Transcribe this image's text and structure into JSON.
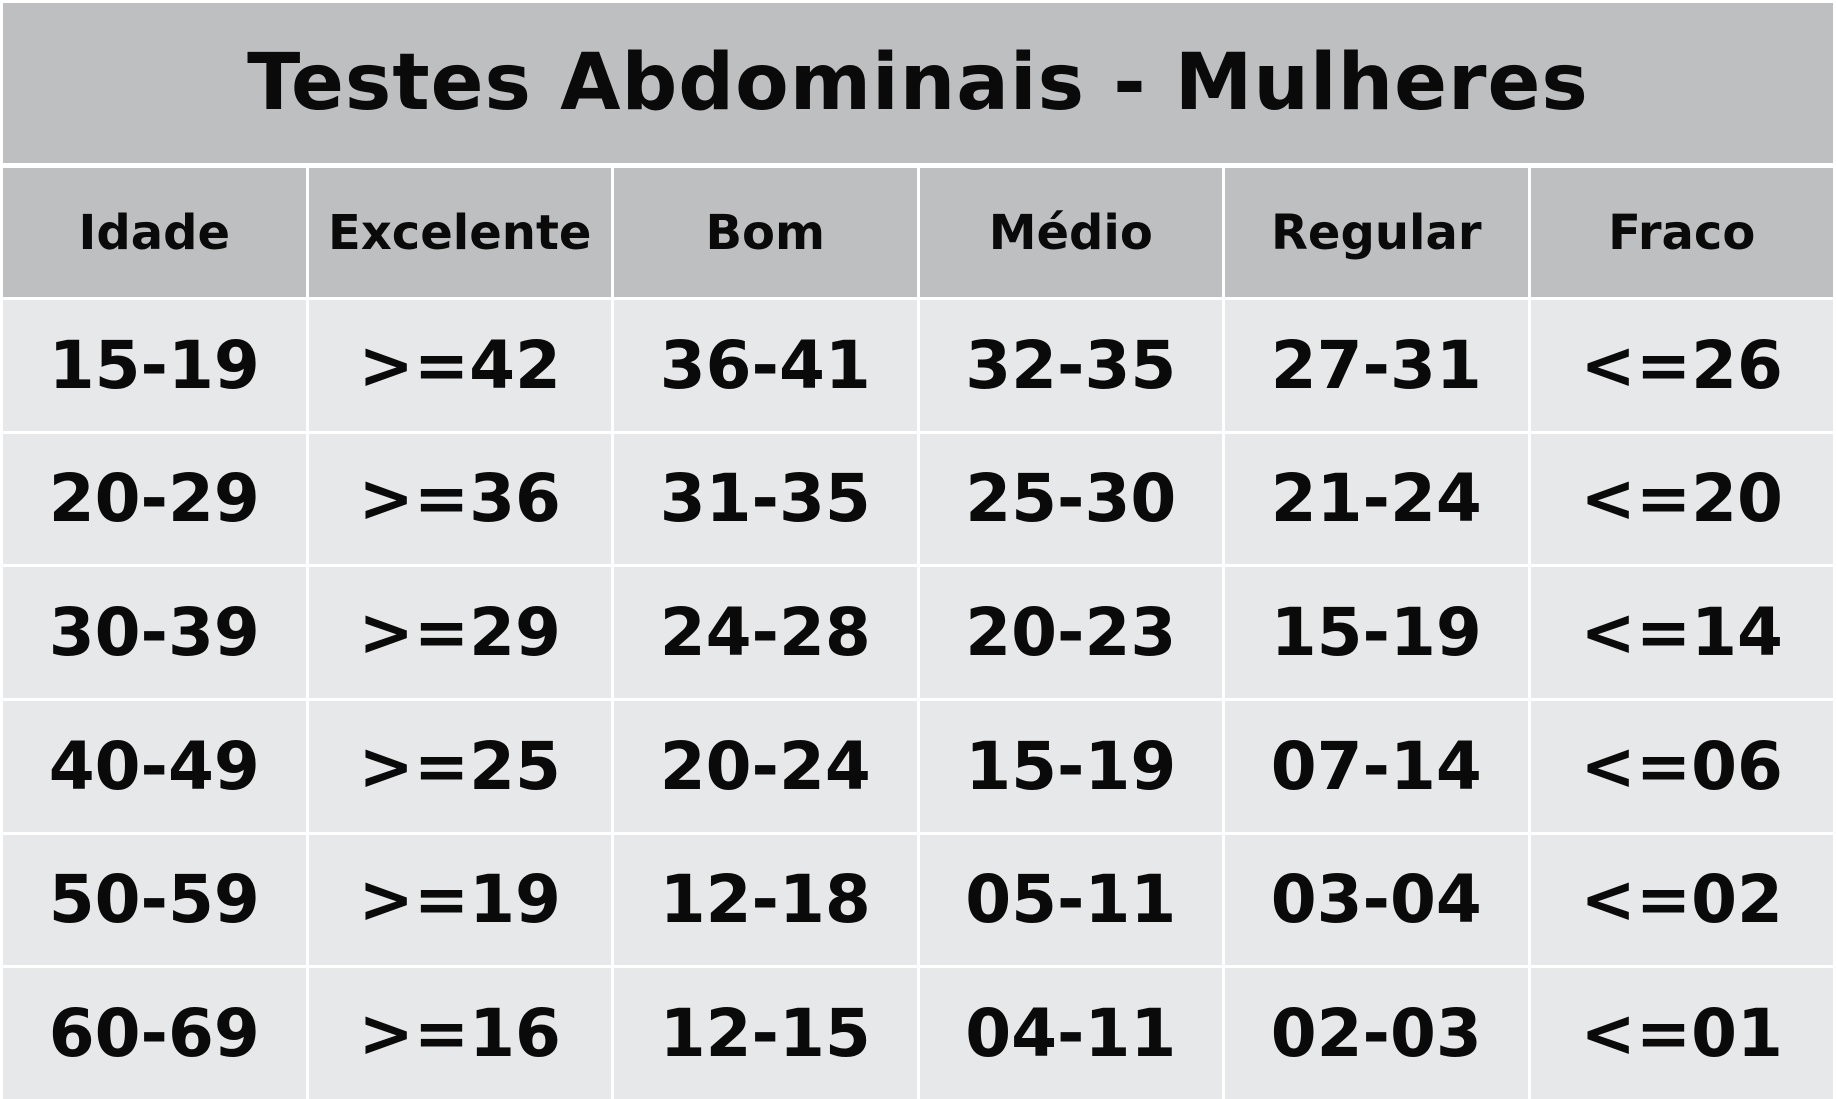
{
  "title": "Testes Abdominais - Mulheres",
  "colors": {
    "header_bg": "#bebfc1",
    "body_bg": "#e7e8e9",
    "grid_line": "#ffffff",
    "text": "#0a0a0a"
  },
  "table": {
    "headers": [
      "Idade",
      "Excelente",
      "Bom",
      "Médio",
      "Regular",
      "Fraco"
    ],
    "rows": [
      [
        "15-19",
        ">=42",
        "36-41",
        "32-35",
        "27-31",
        "<=26"
      ],
      [
        "20-29",
        ">=36",
        "31-35",
        "25-30",
        "21-24",
        "<=20"
      ],
      [
        "30-39",
        ">=29",
        "24-28",
        "20-23",
        "15-19",
        "<=14"
      ],
      [
        "40-49",
        ">=25",
        "20-24",
        "15-19",
        "07-14",
        "<=06"
      ],
      [
        "50-59",
        ">=19",
        "12-18",
        "05-11",
        "03-04",
        "<=02"
      ],
      [
        "60-69",
        ">=16",
        "12-15",
        "04-11",
        "02-03",
        "<=01"
      ]
    ]
  }
}
